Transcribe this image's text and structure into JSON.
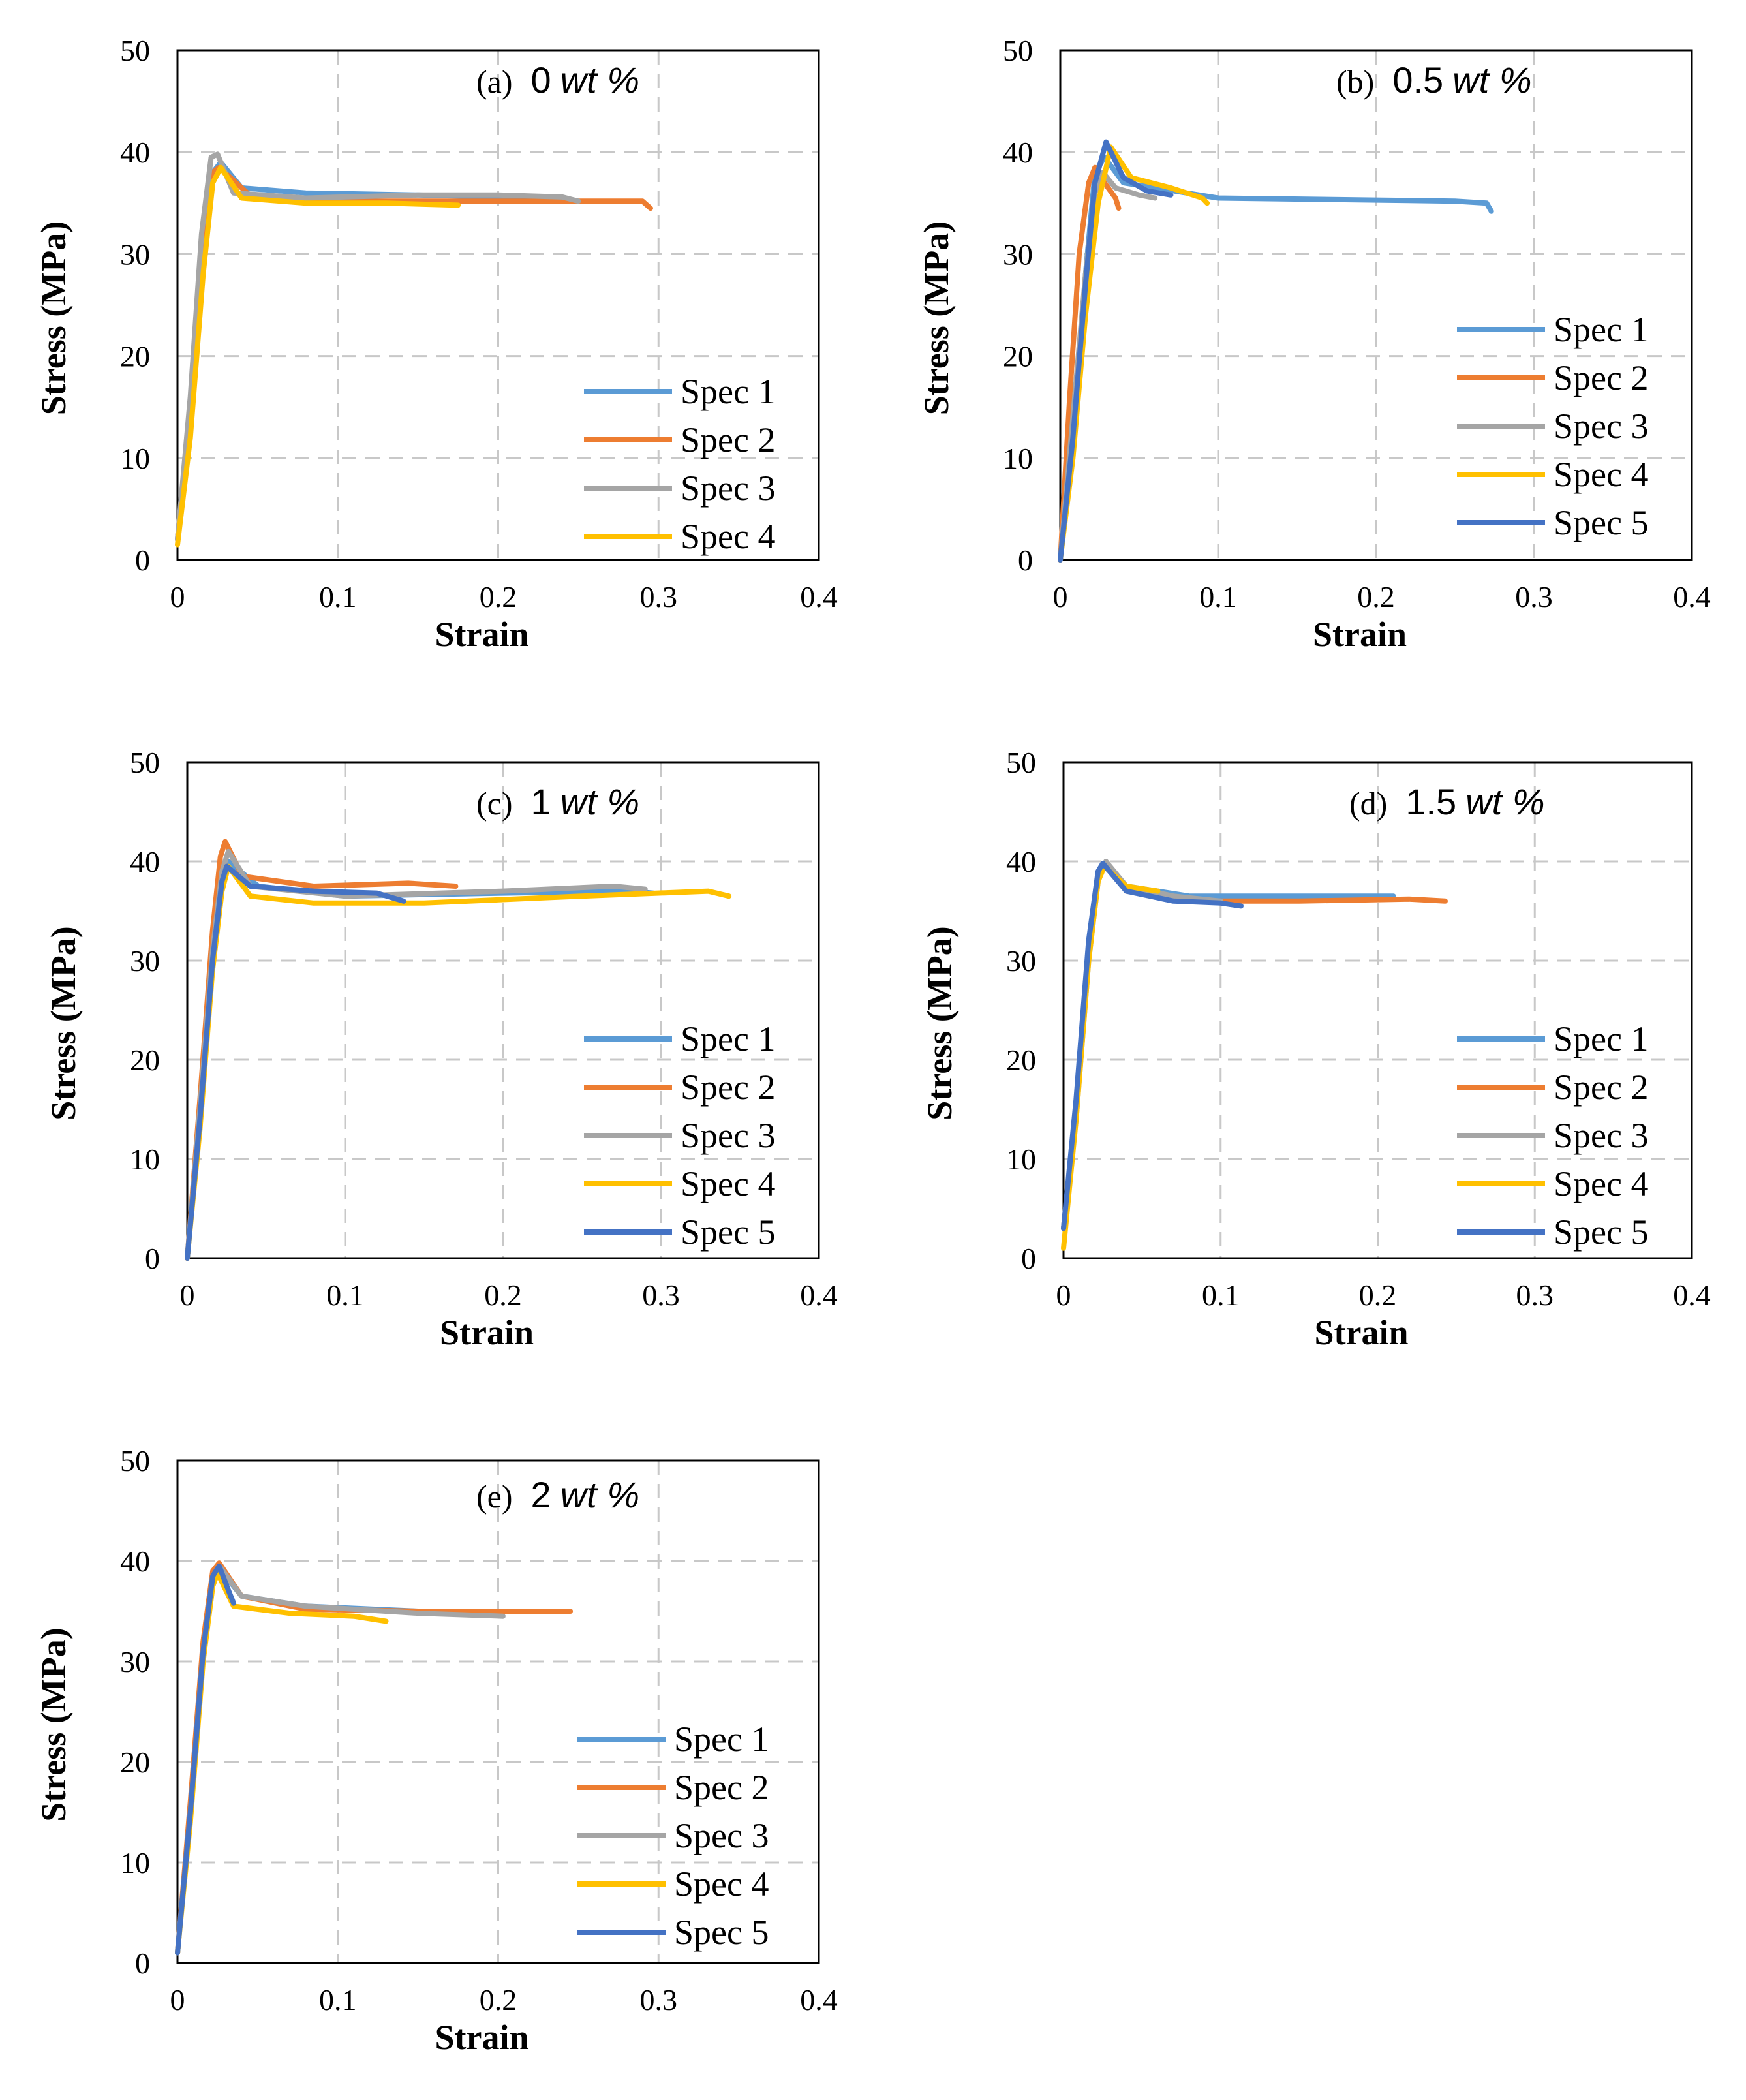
{
  "chart_data": [
    {
      "type": "line",
      "panel_label": "(a)",
      "title_value": "0",
      "title_unit": "wt",
      "title_suffix": " %",
      "xlabel": "Strain",
      "ylabel": "Stress (MPa)",
      "xlim": [
        0,
        0.4
      ],
      "ylim": [
        0,
        50
      ],
      "xticks": [
        "0",
        "0.1",
        "0.2",
        "0.3",
        "0.4"
      ],
      "yticks": [
        "0",
        "10",
        "20",
        "30",
        "40",
        "50"
      ],
      "grid": true,
      "legend_position": "bottom-right",
      "series": [
        {
          "name": "Spec 1",
          "color": "#5B9BD5",
          "x": [
            0,
            0.008,
            0.016,
            0.022,
            0.027,
            0.04,
            0.08,
            0.15,
            0.22,
            0.245
          ],
          "y": [
            2,
            14,
            30,
            38,
            39,
            36.5,
            36,
            35.8,
            35.5,
            35.2
          ]
        },
        {
          "name": "Spec 2",
          "color": "#ED7D31",
          "x": [
            0,
            0.008,
            0.016,
            0.022,
            0.026,
            0.045,
            0.1,
            0.2,
            0.25,
            0.29,
            0.295
          ],
          "y": [
            2,
            15,
            31,
            38,
            38.5,
            35.8,
            35.2,
            35.2,
            35.2,
            35.2,
            34.5
          ]
        },
        {
          "name": "Spec 3",
          "color": "#A5A5A5",
          "x": [
            0,
            0.008,
            0.015,
            0.021,
            0.025,
            0.035,
            0.08,
            0.15,
            0.2,
            0.24,
            0.25
          ],
          "y": [
            2,
            16,
            32,
            39.5,
            39.8,
            36,
            35.5,
            35.8,
            35.8,
            35.6,
            35.2
          ]
        },
        {
          "name": "Spec 4",
          "color": "#FFC000",
          "x": [
            0,
            0.008,
            0.016,
            0.022,
            0.027,
            0.04,
            0.08,
            0.13,
            0.175
          ],
          "y": [
            1.5,
            12,
            28,
            37,
            38.5,
            35.5,
            35,
            35,
            34.8
          ]
        }
      ]
    },
    {
      "type": "line",
      "panel_label": "(b)",
      "title_value": "0.5",
      "title_unit": "wt",
      "title_suffix": " %",
      "xlabel": "Strain",
      "ylabel": "Stress (MPa)",
      "xlim": [
        0,
        0.4
      ],
      "ylim": [
        0,
        50
      ],
      "xticks": [
        "0",
        "0.1",
        "0.2",
        "0.3",
        "0.4"
      ],
      "yticks": [
        "0",
        "10",
        "20",
        "30",
        "40",
        "50"
      ],
      "grid": true,
      "legend_position": "bottom-right",
      "series": [
        {
          "name": "Spec 1",
          "color": "#5B9BD5",
          "x": [
            0,
            0.008,
            0.016,
            0.022,
            0.028,
            0.04,
            0.1,
            0.2,
            0.25,
            0.27,
            0.273
          ],
          "y": [
            0,
            12,
            28,
            38,
            39.5,
            37,
            35.5,
            35.3,
            35.2,
            35,
            34.2
          ]
        },
        {
          "name": "Spec 2",
          "color": "#ED7D31",
          "x": [
            0,
            0.006,
            0.012,
            0.018,
            0.022,
            0.028,
            0.035,
            0.037
          ],
          "y": [
            0,
            16,
            30,
            37,
            38.5,
            37,
            35.5,
            34.5
          ]
        },
        {
          "name": "Spec 3",
          "color": "#A5A5A5",
          "x": [
            0,
            0.008,
            0.016,
            0.022,
            0.027,
            0.035,
            0.05,
            0.06
          ],
          "y": [
            0,
            14,
            28,
            36,
            38,
            36.5,
            35.8,
            35.5
          ]
        },
        {
          "name": "Spec 4",
          "color": "#FFC000",
          "x": [
            0,
            0.008,
            0.016,
            0.024,
            0.032,
            0.045,
            0.07,
            0.09,
            0.093
          ],
          "y": [
            0,
            10,
            24,
            35,
            40.5,
            37.5,
            36.5,
            35.5,
            35
          ]
        },
        {
          "name": "Spec 5",
          "color": "#4472C4",
          "x": [
            0,
            0.008,
            0.016,
            0.022,
            0.029,
            0.04,
            0.055,
            0.07
          ],
          "y": [
            0,
            12,
            27,
            37,
            41,
            37.5,
            36.2,
            35.8
          ]
        }
      ]
    },
    {
      "type": "line",
      "panel_label": "(c)",
      "title_value": "1",
      "title_unit": "wt",
      "title_suffix": " %",
      "xlabel": "Strain",
      "ylabel": "Stress (MPa)",
      "xlim": [
        0,
        0.4
      ],
      "ylim": [
        0,
        50
      ],
      "xticks": [
        "0",
        "0.1",
        "0.2",
        "0.3",
        "0.4"
      ],
      "yticks": [
        "0",
        "10",
        "20",
        "30",
        "40",
        "50"
      ],
      "grid": true,
      "legend_position": "bottom-right",
      "series": [
        {
          "name": "Spec 1",
          "color": "#5B9BD5",
          "x": [
            0,
            0.008,
            0.016,
            0.022,
            0.026,
            0.045,
            0.1,
            0.2,
            0.28,
            0.295
          ],
          "y": [
            0,
            14,
            30,
            38,
            40,
            37.5,
            36.5,
            36.8,
            37,
            36.8
          ]
        },
        {
          "name": "Spec 2",
          "color": "#ED7D31",
          "x": [
            0,
            0.008,
            0.016,
            0.021,
            0.024,
            0.035,
            0.08,
            0.14,
            0.17
          ],
          "y": [
            0,
            16,
            33,
            40.5,
            42,
            38.5,
            37.5,
            37.8,
            37.5
          ]
        },
        {
          "name": "Spec 3",
          "color": "#A5A5A5",
          "x": [
            0,
            0.008,
            0.016,
            0.022,
            0.026,
            0.04,
            0.1,
            0.2,
            0.27,
            0.29
          ],
          "y": [
            0,
            15,
            31,
            39,
            41,
            37.5,
            36.5,
            37,
            37.5,
            37.2
          ]
        },
        {
          "name": "Spec 4",
          "color": "#FFC000",
          "x": [
            0,
            0.008,
            0.016,
            0.022,
            0.026,
            0.04,
            0.08,
            0.15,
            0.25,
            0.33,
            0.343
          ],
          "y": [
            0,
            13,
            29,
            37,
            39.5,
            36.5,
            35.8,
            35.8,
            36.5,
            37,
            36.5
          ]
        },
        {
          "name": "Spec 5",
          "color": "#4472C4",
          "x": [
            0,
            0.008,
            0.016,
            0.022,
            0.025,
            0.04,
            0.08,
            0.12,
            0.137
          ],
          "y": [
            0,
            14,
            30,
            38,
            39.5,
            37.5,
            37,
            36.8,
            36
          ]
        }
      ]
    },
    {
      "type": "line",
      "panel_label": "(d)",
      "title_value": "1.5",
      "title_unit": "wt",
      "title_suffix": " %",
      "xlabel": "Strain",
      "ylabel": "Stress (MPa)",
      "xlim": [
        0,
        0.4
      ],
      "ylim": [
        0,
        50
      ],
      "xticks": [
        "0",
        "0.1",
        "0.2",
        "0.3",
        "0.4"
      ],
      "yticks": [
        "0",
        "10",
        "20",
        "30",
        "40",
        "50"
      ],
      "grid": true,
      "legend_position": "bottom-right",
      "series": [
        {
          "name": "Spec 1",
          "color": "#5B9BD5",
          "x": [
            0,
            0.008,
            0.016,
            0.022,
            0.026,
            0.04,
            0.08,
            0.15,
            0.21
          ],
          "y": [
            3,
            15,
            31,
            38.5,
            39.5,
            37.5,
            36.5,
            36.5,
            36.5
          ]
        },
        {
          "name": "Spec 2",
          "color": "#ED7D31",
          "x": [
            0,
            0.008,
            0.016,
            0.022,
            0.027,
            0.04,
            0.08,
            0.15,
            0.22,
            0.243
          ],
          "y": [
            3,
            15,
            31,
            38.5,
            39.8,
            37,
            36,
            36,
            36.2,
            36
          ]
        },
        {
          "name": "Spec 3",
          "color": "#A5A5A5",
          "x": [
            0,
            0.008,
            0.016,
            0.022,
            0.027,
            0.04,
            0.07,
            0.1
          ],
          "y": [
            3,
            14,
            30,
            38,
            40,
            37.5,
            36.5,
            36
          ]
        },
        {
          "name": "Spec 4",
          "color": "#FFC000",
          "x": [
            0,
            0.008,
            0.016,
            0.022,
            0.026,
            0.04,
            0.06
          ],
          "y": [
            1,
            14,
            30,
            38,
            39.5,
            37.5,
            37
          ]
        },
        {
          "name": "Spec 5",
          "color": "#4472C4",
          "x": [
            0,
            0.008,
            0.016,
            0.022,
            0.025,
            0.04,
            0.07,
            0.1,
            0.113
          ],
          "y": [
            3,
            16,
            32,
            39,
            39.8,
            37,
            36,
            35.8,
            35.5
          ]
        }
      ]
    },
    {
      "type": "line",
      "panel_label": "(e)",
      "title_value": "2",
      "title_unit": "wt",
      "title_suffix": " %",
      "xlabel": "Strain",
      "ylabel": "Stress (MPa)",
      "xlim": [
        0,
        0.4
      ],
      "ylim": [
        0,
        50
      ],
      "xticks": [
        "0",
        "0.1",
        "0.2",
        "0.3",
        "0.4"
      ],
      "yticks": [
        "0",
        "10",
        "20",
        "30",
        "40",
        "50"
      ],
      "grid": true,
      "legend_position": "bottom-right",
      "series": [
        {
          "name": "Spec 1",
          "color": "#5B9BD5",
          "x": [
            0,
            0.008,
            0.016,
            0.022,
            0.026,
            0.04,
            0.08,
            0.15,
            0.2
          ],
          "y": [
            1,
            15,
            31,
            38,
            39.3,
            36.5,
            35.5,
            35,
            34.8
          ]
        },
        {
          "name": "Spec 2",
          "color": "#ED7D31",
          "x": [
            0,
            0.008,
            0.016,
            0.022,
            0.026,
            0.04,
            0.08,
            0.15,
            0.22,
            0.245
          ],
          "y": [
            1,
            16,
            32,
            39,
            39.8,
            36.5,
            35.2,
            35,
            35,
            35
          ]
        },
        {
          "name": "Spec 3",
          "color": "#A5A5A5",
          "x": [
            0,
            0.008,
            0.016,
            0.022,
            0.026,
            0.04,
            0.08,
            0.15,
            0.203
          ],
          "y": [
            1,
            15,
            31,
            38.5,
            39.5,
            36.5,
            35.5,
            34.8,
            34.5
          ]
        },
        {
          "name": "Spec 4",
          "color": "#FFC000",
          "x": [
            0,
            0.008,
            0.016,
            0.022,
            0.025,
            0.035,
            0.07,
            0.11,
            0.13
          ],
          "y": [
            1,
            14,
            30,
            37.5,
            38.8,
            35.5,
            34.8,
            34.5,
            34
          ]
        },
        {
          "name": "Spec 5",
          "color": "#4472C4",
          "x": [
            0,
            0.008,
            0.016,
            0.022,
            0.026,
            0.032,
            0.035
          ],
          "y": [
            1,
            15,
            31,
            38.5,
            39.5,
            37,
            35.8
          ]
        }
      ]
    }
  ]
}
